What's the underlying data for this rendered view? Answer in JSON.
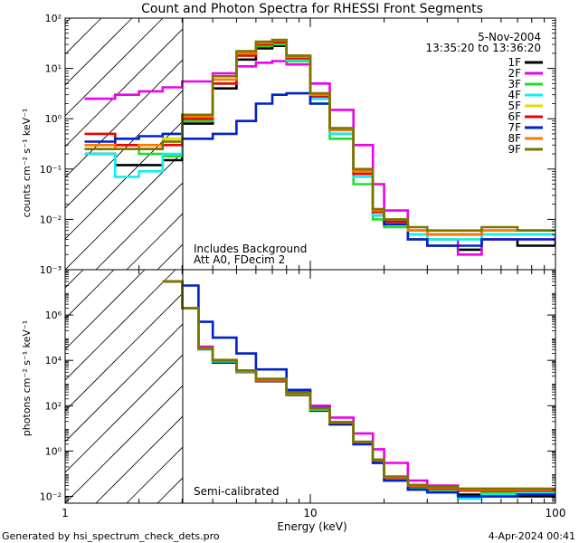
{
  "title": "Count and Photon Spectra for RHESSI Front Segments",
  "date": "5-Nov-2004",
  "time_range": "13:35:20 to 13:36:20",
  "annotations": {
    "top_panel": [
      "Includes Background",
      "Att A0, FDecim 2"
    ],
    "bottom_panel": "Semi-calibrated"
  },
  "footer": {
    "left": "Generated by hsi_spectrum_check_dets.pro",
    "right": "4-Apr-2024 00:41"
  },
  "colors": {
    "1F": "#000000",
    "2F": "#ee00ee",
    "3F": "#22dd22",
    "4F": "#11eeee",
    "5F": "#dddd00",
    "6F": "#ee0000",
    "7F": "#0022cc",
    "8F": "#ff7700",
    "9F": "#777700"
  },
  "chart_data": [
    {
      "type": "line",
      "panel": "top",
      "xscale": "log",
      "yscale": "log",
      "xlim": [
        1,
        100
      ],
      "ylim": [
        0.001,
        100
      ],
      "xlabel": "",
      "ylabel": "counts cm⁻² s⁻¹ keV⁻¹",
      "yticks": [
        {
          "v": 0.001,
          "label": "10⁻³"
        },
        {
          "v": 0.01,
          "label": "10⁻²"
        },
        {
          "v": 0.1,
          "label": "10⁻¹"
        },
        {
          "v": 1,
          "label": "10⁰"
        },
        {
          "v": 10,
          "label": "10¹"
        },
        {
          "v": 100,
          "label": "10²"
        }
      ],
      "hatched_region_x": [
        1,
        3
      ],
      "legend": [
        "1F",
        "2F",
        "3F",
        "4F",
        "5F",
        "6F",
        "7F",
        "8F",
        "9F"
      ],
      "series": [
        {
          "name": "1F",
          "x": [
            1.2,
            1.6,
            2,
            2.5,
            3,
            4,
            5,
            6,
            7,
            8,
            10,
            12,
            15,
            18,
            20,
            25,
            30,
            40,
            50,
            70,
            100
          ],
          "y": [
            0.2,
            0.12,
            0.12,
            0.15,
            0.8,
            4,
            15,
            25,
            28,
            15,
            2.5,
            0.5,
            0.08,
            0.012,
            0.008,
            0.004,
            0.003,
            0.0025,
            0.004,
            0.003,
            0.004
          ]
        },
        {
          "name": "2F",
          "x": [
            1.2,
            1.6,
            2,
            2.5,
            3,
            4,
            5,
            6,
            7,
            8,
            10,
            12,
            15,
            18,
            20,
            25,
            30,
            40,
            50,
            70,
            100
          ],
          "y": [
            2.5,
            3,
            3.5,
            4.2,
            5.5,
            8,
            11,
            13,
            14,
            12,
            5,
            1.5,
            0.3,
            0.05,
            0.015,
            0.006,
            0.004,
            0.002,
            0.004,
            0.004,
            0.005
          ]
        },
        {
          "name": "3F",
          "x": [
            1.2,
            1.6,
            2,
            2.5,
            3,
            4,
            5,
            6,
            7,
            8,
            10,
            12,
            15,
            18,
            20,
            25,
            30,
            40,
            50,
            70,
            100
          ],
          "y": [
            0.3,
            0.3,
            0.2,
            0.18,
            0.9,
            5,
            18,
            28,
            30,
            14,
            2,
            0.4,
            0.05,
            0.01,
            0.007,
            0.005,
            0.004,
            0.004,
            0.005,
            0.005,
            0.005
          ]
        },
        {
          "name": "4F",
          "x": [
            1.2,
            1.6,
            2,
            2.5,
            3,
            4,
            5,
            6,
            7,
            8,
            10,
            12,
            15,
            18,
            20,
            25,
            30,
            40,
            50,
            70,
            100
          ],
          "y": [
            0.2,
            0.07,
            0.09,
            0.2,
            1.0,
            5,
            19,
            30,
            32,
            15,
            2.5,
            0.5,
            0.07,
            0.012,
            0.008,
            0.005,
            0.004,
            0.004,
            0.005,
            0.005,
            0.005
          ]
        },
        {
          "name": "5F",
          "x": [
            1.2,
            1.6,
            2,
            2.5,
            3,
            4,
            5,
            6,
            7,
            8,
            10,
            12,
            15,
            18,
            20,
            25,
            30,
            40,
            50,
            70,
            100
          ],
          "y": [
            0.3,
            0.25,
            0.3,
            0.4,
            1.2,
            6,
            20,
            32,
            35,
            17,
            3,
            0.6,
            0.09,
            0.015,
            0.01,
            0.006,
            0.005,
            0.005,
            0.006,
            0.006,
            0.006
          ]
        },
        {
          "name": "6F",
          "x": [
            1.2,
            1.6,
            2,
            2.5,
            3,
            4,
            5,
            6,
            7,
            8,
            10,
            12,
            15,
            18,
            20,
            25,
            30,
            40,
            50,
            70,
            100
          ],
          "y": [
            0.5,
            0.3,
            0.25,
            0.3,
            1.0,
            5,
            18,
            30,
            33,
            16,
            2.8,
            0.6,
            0.08,
            0.014,
            0.009,
            0.006,
            0.005,
            0.005,
            0.006,
            0.006,
            0.006
          ]
        },
        {
          "name": "7F",
          "x": [
            1.2,
            1.6,
            2,
            2.5,
            3,
            4,
            5,
            6,
            7,
            8,
            10,
            12,
            15,
            18,
            20,
            25,
            30,
            40,
            50,
            70,
            100
          ],
          "y": [
            0.35,
            0.4,
            0.45,
            0.5,
            0.4,
            0.5,
            0.9,
            2,
            3,
            3.2,
            2,
            0.6,
            0.1,
            0.015,
            0.008,
            0.004,
            0.003,
            0.003,
            0.004,
            0.004,
            0.004
          ]
        },
        {
          "name": "8F",
          "x": [
            1.2,
            1.6,
            2,
            2.5,
            3,
            4,
            5,
            6,
            7,
            8,
            10,
            12,
            15,
            18,
            20,
            25,
            30,
            40,
            50,
            70,
            100
          ],
          "y": [
            0.3,
            0.25,
            0.3,
            0.35,
            1.1,
            6,
            20,
            32,
            36,
            17,
            3,
            0.6,
            0.09,
            0.015,
            0.01,
            0.006,
            0.005,
            0.005,
            0.006,
            0.006,
            0.006
          ]
        },
        {
          "name": "9F",
          "x": [
            1.2,
            1.6,
            2,
            2.5,
            3,
            4,
            5,
            6,
            7,
            8,
            10,
            12,
            15,
            18,
            20,
            25,
            30,
            40,
            50,
            70,
            100
          ],
          "y": [
            0.25,
            0.25,
            0.25,
            0.35,
            1.2,
            7,
            22,
            34,
            37,
            18,
            3.2,
            0.65,
            0.1,
            0.016,
            0.01,
            0.007,
            0.006,
            0.006,
            0.007,
            0.006,
            0.006
          ]
        }
      ]
    },
    {
      "type": "line",
      "panel": "bottom",
      "xscale": "log",
      "yscale": "log",
      "xlim": [
        1,
        100
      ],
      "ylim": [
        0.005,
        100000000
      ],
      "xlabel": "Energy (keV)",
      "ylabel": "photons cm⁻² s⁻¹ keV⁻¹",
      "xticks": [
        {
          "v": 1,
          "label": "1"
        },
        {
          "v": 10,
          "label": "10"
        },
        {
          "v": 100,
          "label": "100"
        }
      ],
      "yticks": [
        {
          "v": 0.01,
          "label": "10⁻²"
        },
        {
          "v": 1,
          "label": "10⁰"
        },
        {
          "v": 100,
          "label": "10²"
        },
        {
          "v": 10000,
          "label": "10⁴"
        },
        {
          "v": 1000000,
          "label": "10⁶"
        }
      ],
      "hatched_region_x": [
        1,
        3
      ],
      "series": [
        {
          "name": "1F",
          "x": [
            2.5,
            3,
            3.5,
            4,
            5,
            6,
            8,
            10,
            12,
            15,
            18,
            20,
            25,
            30,
            40,
            50,
            70,
            100
          ],
          "y": [
            30000000,
            2000000,
            30000,
            8000,
            3000,
            1200,
            300,
            60,
            15,
            2,
            0.3,
            0.05,
            0.02,
            0.015,
            0.012,
            0.01,
            0.01,
            0.012
          ]
        },
        {
          "name": "2F",
          "x": [
            2.5,
            3,
            3.5,
            4,
            5,
            6,
            8,
            10,
            12,
            15,
            18,
            20,
            25,
            30,
            40,
            50,
            70,
            100
          ],
          "y": [
            30000000,
            2000000,
            40000,
            10000,
            3500,
            1500,
            400,
            100,
            30,
            6,
            1.2,
            0.3,
            0.05,
            0.03,
            0.02,
            0.015,
            0.015,
            0.02
          ]
        },
        {
          "name": "3F",
          "x": [
            2.5,
            3,
            3.5,
            4,
            5,
            6,
            8,
            10,
            12,
            15,
            18,
            20,
            25,
            30,
            40,
            50,
            70,
            100
          ],
          "y": [
            30000000,
            2000000,
            30000,
            9000,
            3000,
            1300,
            320,
            65,
            16,
            2.2,
            0.35,
            0.06,
            0.025,
            0.02,
            0.018,
            0.015,
            0.015,
            0.015
          ]
        },
        {
          "name": "4F",
          "x": [
            2.5,
            3,
            3.5,
            4,
            5,
            6,
            8,
            10,
            12,
            15,
            18,
            20,
            25,
            30,
            40,
            50,
            70,
            100
          ],
          "y": [
            30000000,
            2000000,
            30000,
            9000,
            3200,
            1400,
            330,
            70,
            17,
            2.3,
            0.35,
            0.06,
            0.02,
            0.015,
            0.008,
            0.012,
            0.014,
            0.015
          ]
        },
        {
          "name": "5F",
          "x": [
            2.5,
            3,
            3.5,
            4,
            5,
            6,
            8,
            10,
            12,
            15,
            18,
            20,
            25,
            30,
            40,
            50,
            70,
            100
          ],
          "y": [
            30000000,
            2000000,
            35000,
            10000,
            3500,
            1500,
            350,
            75,
            18,
            2.5,
            0.4,
            0.07,
            0.03,
            0.025,
            0.02,
            0.02,
            0.02,
            0.02
          ]
        },
        {
          "name": "6F",
          "x": [
            2.5,
            3,
            3.5,
            4,
            5,
            6,
            8,
            10,
            12,
            15,
            18,
            20,
            25,
            30,
            40,
            50,
            70,
            100
          ],
          "y": [
            30000000,
            2000000,
            32000,
            9500,
            3300,
            1400,
            340,
            72,
            17,
            2.4,
            0.38,
            0.065,
            0.028,
            0.022,
            0.018,
            0.018,
            0.018,
            0.018
          ]
        },
        {
          "name": "7F",
          "x": [
            2.5,
            3,
            3.5,
            4,
            5,
            6,
            8,
            10,
            12,
            15,
            18,
            20,
            25,
            30,
            40,
            50,
            70,
            100
          ],
          "y": [
            30000000,
            20000000,
            500000,
            100000,
            20000,
            4000,
            500,
            80,
            16,
            2,
            0.3,
            0.05,
            0.02,
            0.015,
            0.01,
            0.01,
            0.012,
            0.012
          ]
        },
        {
          "name": "8F",
          "x": [
            2.5,
            3,
            3.5,
            4,
            5,
            6,
            8,
            10,
            12,
            15,
            18,
            20,
            25,
            30,
            40,
            50,
            70,
            100
          ],
          "y": [
            30000000,
            2000000,
            34000,
            9800,
            3400,
            1450,
            345,
            73,
            18,
            2.5,
            0.4,
            0.07,
            0.03,
            0.024,
            0.02,
            0.02,
            0.02,
            0.02
          ]
        },
        {
          "name": "9F",
          "x": [
            2.5,
            3,
            3.5,
            4,
            5,
            6,
            8,
            10,
            12,
            15,
            18,
            20,
            25,
            30,
            40,
            50,
            70,
            100
          ],
          "y": [
            30000000,
            2000000,
            36000,
            10500,
            3600,
            1550,
            360,
            78,
            19,
            2.6,
            0.42,
            0.075,
            0.032,
            0.026,
            0.022,
            0.022,
            0.022,
            0.022
          ]
        }
      ]
    }
  ]
}
